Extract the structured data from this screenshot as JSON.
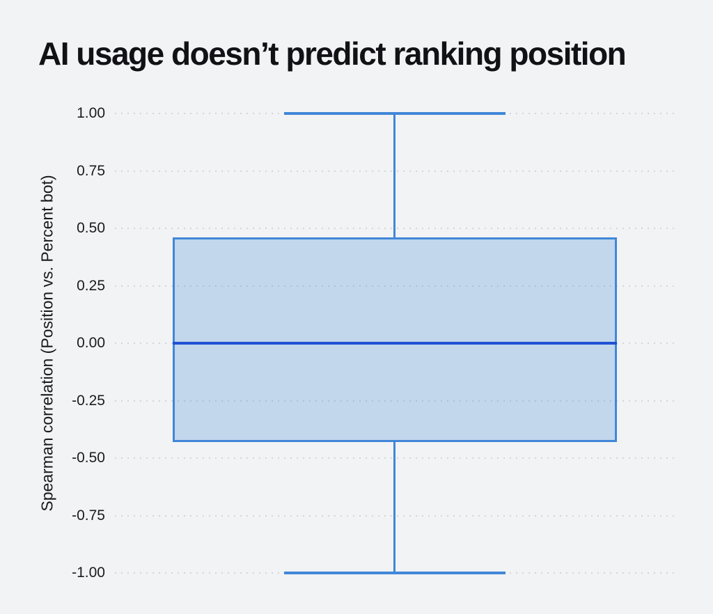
{
  "page": {
    "background": "#f2f3f5"
  },
  "chart_data": {
    "type": "box",
    "title": "AI usage doesn’t predict ranking position",
    "ylabel": "Spearman correlation (Position vs. Percent bot)",
    "xlabel": "",
    "ylim": [
      -1.0,
      1.0
    ],
    "yticks": [
      1.0,
      0.75,
      0.5,
      0.25,
      0.0,
      -0.25,
      -0.5,
      -0.75,
      -1.0
    ],
    "ytick_labels": [
      "1.00",
      "0.75",
      "0.50",
      "0.25",
      "0.00",
      "-0.25",
      "-0.50",
      "-0.75",
      "-1.00"
    ],
    "grid": "horizontal-dotted",
    "legend": "none",
    "series": [
      {
        "name": "Position vs. Percent bot",
        "whisker_low": -1.0,
        "q1": -0.43,
        "median": 0.0,
        "q3": 0.46,
        "whisker_high": 1.0
      }
    ],
    "colors": {
      "background": "#f2f3f5",
      "box_fill": "rgba(65,135,216,0.27)",
      "box_stroke": "#4187d8",
      "median": "#1e51d4",
      "grid_dot": "#d3d5da",
      "text": "#18181d"
    },
    "layout": {
      "box_left_frac": 0.1027,
      "box_width_frac": 0.7896,
      "cap_left_frac": 0.3007,
      "cap_width_frac": 0.3936,
      "whisker_center_frac": 0.4975
    }
  }
}
